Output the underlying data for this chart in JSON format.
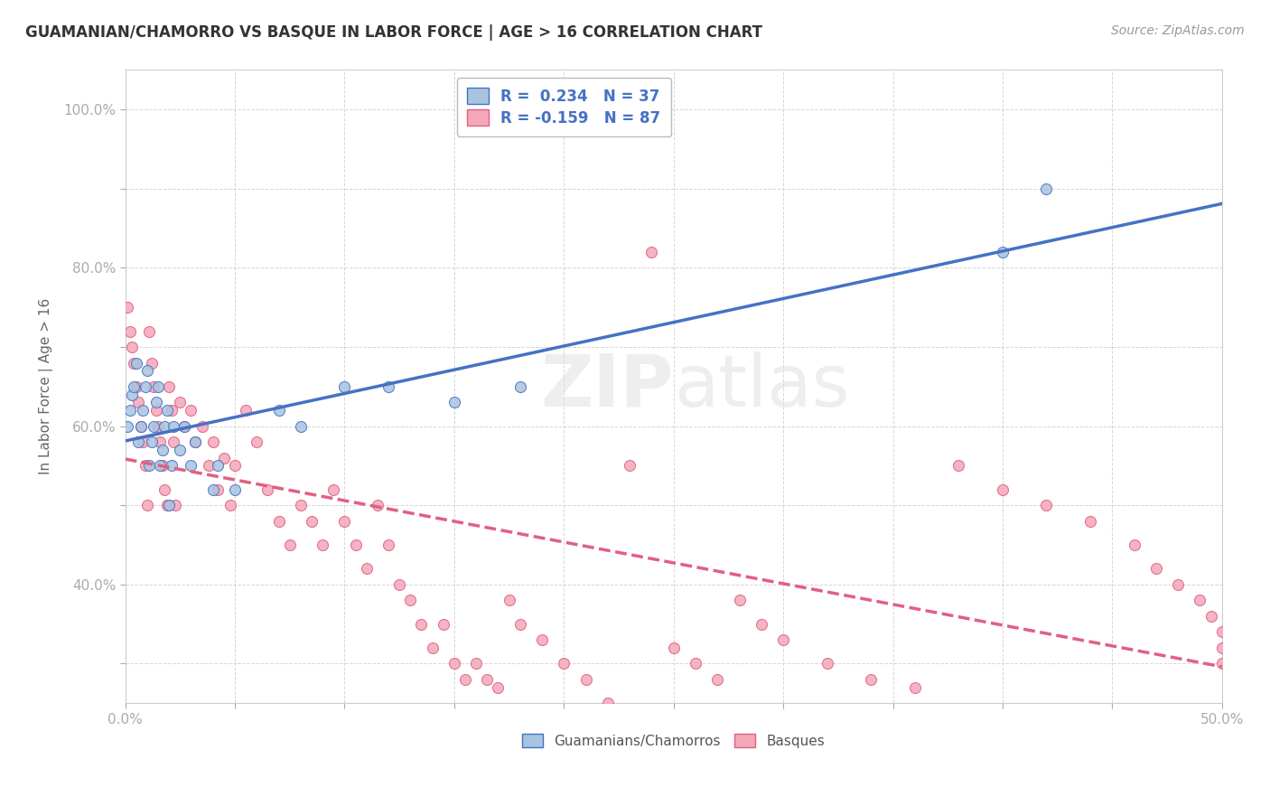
{
  "title": "GUAMANIAN/CHAMORRO VS BASQUE IN LABOR FORCE | AGE > 16 CORRELATION CHART",
  "source": "Source: ZipAtlas.com",
  "ylabel": "In Labor Force | Age > 16",
  "xlim": [
    0.0,
    0.5
  ],
  "ylim": [
    0.25,
    1.05
  ],
  "R_blue": 0.234,
  "N_blue": 37,
  "R_pink": -0.159,
  "N_pink": 87,
  "color_blue": "#a8c4e0",
  "color_pink": "#f4a7b9",
  "line_blue": "#4472c4",
  "line_pink": "#e06080",
  "watermark_zip": "ZIP",
  "watermark_atlas": "atlas",
  "legend_label_blue": "Guamanians/Chamorros",
  "legend_label_pink": "Basques",
  "guamanian_x": [
    0.001,
    0.002,
    0.003,
    0.004,
    0.005,
    0.006,
    0.007,
    0.008,
    0.009,
    0.01,
    0.011,
    0.012,
    0.013,
    0.014,
    0.015,
    0.016,
    0.017,
    0.018,
    0.019,
    0.02,
    0.021,
    0.022,
    0.025,
    0.027,
    0.03,
    0.032,
    0.04,
    0.042,
    0.05,
    0.07,
    0.08,
    0.1,
    0.12,
    0.15,
    0.18,
    0.4,
    0.42
  ],
  "guamanian_y": [
    0.6,
    0.62,
    0.64,
    0.65,
    0.68,
    0.58,
    0.6,
    0.62,
    0.65,
    0.67,
    0.55,
    0.58,
    0.6,
    0.63,
    0.65,
    0.55,
    0.57,
    0.6,
    0.62,
    0.5,
    0.55,
    0.6,
    0.57,
    0.6,
    0.55,
    0.58,
    0.52,
    0.55,
    0.52,
    0.62,
    0.6,
    0.65,
    0.65,
    0.63,
    0.65,
    0.82,
    0.9
  ],
  "basque_x": [
    0.001,
    0.002,
    0.003,
    0.004,
    0.005,
    0.006,
    0.007,
    0.008,
    0.009,
    0.01,
    0.011,
    0.012,
    0.013,
    0.014,
    0.015,
    0.016,
    0.017,
    0.018,
    0.019,
    0.02,
    0.021,
    0.022,
    0.023,
    0.025,
    0.027,
    0.03,
    0.032,
    0.035,
    0.038,
    0.04,
    0.042,
    0.045,
    0.048,
    0.05,
    0.055,
    0.06,
    0.065,
    0.07,
    0.075,
    0.08,
    0.085,
    0.09,
    0.095,
    0.1,
    0.105,
    0.11,
    0.115,
    0.12,
    0.125,
    0.13,
    0.135,
    0.14,
    0.145,
    0.15,
    0.155,
    0.16,
    0.165,
    0.17,
    0.175,
    0.18,
    0.19,
    0.2,
    0.21,
    0.22,
    0.23,
    0.24,
    0.25,
    0.26,
    0.27,
    0.28,
    0.29,
    0.3,
    0.32,
    0.34,
    0.36,
    0.38,
    0.4,
    0.42,
    0.44,
    0.46,
    0.47,
    0.48,
    0.49,
    0.495,
    0.5,
    0.5,
    0.5
  ],
  "basque_y": [
    0.75,
    0.72,
    0.7,
    0.68,
    0.65,
    0.63,
    0.6,
    0.58,
    0.55,
    0.5,
    0.72,
    0.68,
    0.65,
    0.62,
    0.6,
    0.58,
    0.55,
    0.52,
    0.5,
    0.65,
    0.62,
    0.58,
    0.5,
    0.63,
    0.6,
    0.62,
    0.58,
    0.6,
    0.55,
    0.58,
    0.52,
    0.56,
    0.5,
    0.55,
    0.62,
    0.58,
    0.52,
    0.48,
    0.45,
    0.5,
    0.48,
    0.45,
    0.52,
    0.48,
    0.45,
    0.42,
    0.5,
    0.45,
    0.4,
    0.38,
    0.35,
    0.32,
    0.35,
    0.3,
    0.28,
    0.3,
    0.28,
    0.27,
    0.38,
    0.35,
    0.33,
    0.3,
    0.28,
    0.25,
    0.55,
    0.82,
    0.32,
    0.3,
    0.28,
    0.38,
    0.35,
    0.33,
    0.3,
    0.28,
    0.27,
    0.55,
    0.52,
    0.5,
    0.48,
    0.45,
    0.42,
    0.4,
    0.38,
    0.36,
    0.34,
    0.32,
    0.3
  ]
}
